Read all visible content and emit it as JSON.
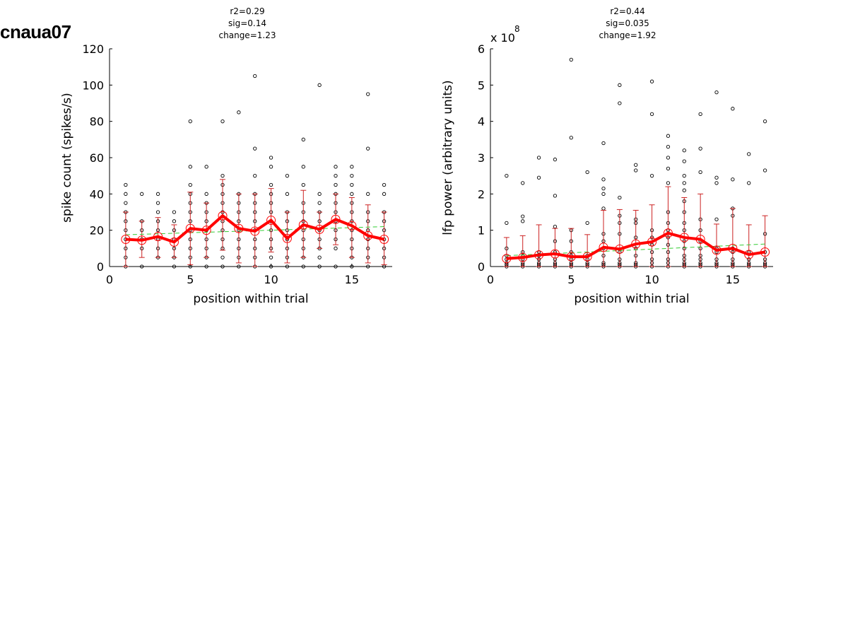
{
  "figure_label": "cnaua07",
  "colors": {
    "mean_line": "#ff0000",
    "errorbar": "#cc2222",
    "fit_line": "#33cc33",
    "points": "#000000"
  },
  "chart_data": [
    {
      "type": "scatter",
      "stats": [
        "r2=0.29",
        "sig=0.14",
        "change=1.23"
      ],
      "xlabel": "position within trial",
      "ylabel": "spike count (spikes/s)",
      "xlim": [
        0,
        17.5
      ],
      "ylim": [
        0,
        120
      ],
      "xticks": [
        0,
        5,
        10,
        15
      ],
      "yticks": [
        0,
        20,
        40,
        60,
        80,
        100,
        120
      ],
      "exponent_label": "",
      "x": [
        1,
        2,
        3,
        4,
        5,
        6,
        7,
        8,
        9,
        10,
        11,
        12,
        13,
        14,
        15,
        16,
        17
      ],
      "mean": [
        15,
        14.5,
        16.5,
        13.5,
        21,
        20,
        28,
        21,
        19.5,
        25.5,
        15.5,
        23,
        20.5,
        26,
        22.5,
        17,
        15
      ],
      "err_low": [
        0,
        5,
        5,
        5,
        1,
        5,
        9,
        2,
        0,
        8,
        2,
        5,
        10,
        12,
        5,
        2,
        1
      ],
      "err_high": [
        30,
        25,
        27,
        23,
        41,
        35,
        48,
        40,
        40,
        43,
        30,
        42,
        30,
        40,
        38,
        34,
        30
      ],
      "fit": [
        17.5,
        22
      ],
      "points": [
        [
          0,
          5,
          10,
          15,
          20,
          25,
          30,
          35,
          40,
          45
        ],
        [
          0,
          10,
          15,
          20,
          25,
          40
        ],
        [
          5,
          10,
          15,
          20,
          25,
          30,
          35,
          40
        ],
        [
          0,
          5,
          10,
          15,
          20,
          25,
          30
        ],
        [
          0,
          5,
          10,
          15,
          20,
          25,
          30,
          35,
          40,
          45,
          55,
          80
        ],
        [
          0,
          5,
          10,
          15,
          20,
          25,
          30,
          35,
          40,
          55
        ],
        [
          0,
          5,
          10,
          15,
          20,
          25,
          30,
          35,
          40,
          45,
          50,
          80
        ],
        [
          0,
          5,
          10,
          15,
          20,
          25,
          30,
          35,
          40,
          85
        ],
        [
          0,
          5,
          10,
          15,
          20,
          25,
          30,
          35,
          40,
          50,
          65,
          105
        ],
        [
          0,
          5,
          10,
          15,
          20,
          25,
          30,
          35,
          40,
          45,
          55,
          60
        ],
        [
          0,
          5,
          10,
          15,
          20,
          25,
          30,
          40,
          50
        ],
        [
          0,
          5,
          10,
          15,
          20,
          25,
          30,
          35,
          45,
          55,
          70
        ],
        [
          0,
          5,
          10,
          15,
          20,
          25,
          30,
          35,
          40,
          100
        ],
        [
          0,
          10,
          15,
          20,
          25,
          30,
          35,
          40,
          45,
          50,
          55
        ],
        [
          0,
          5,
          10,
          15,
          20,
          25,
          30,
          35,
          40,
          45,
          50,
          55
        ],
        [
          0,
          5,
          10,
          15,
          20,
          25,
          30,
          40,
          65,
          95
        ],
        [
          0,
          5,
          10,
          15,
          20,
          25,
          30,
          40,
          45
        ]
      ]
    },
    {
      "type": "scatter",
      "stats": [
        "r2=0.44",
        "sig=0.035",
        "change=1.92"
      ],
      "xlabel": "position within trial",
      "ylabel": "lfp power (arbitrary units)",
      "xlim": [
        0,
        17.5
      ],
      "ylim": [
        0,
        6
      ],
      "xticks": [
        0,
        5,
        10,
        15
      ],
      "yticks": [
        0,
        1,
        2,
        3,
        4,
        5,
        6
      ],
      "exponent_label": "x 10",
      "exponent_power": "8",
      "x": [
        1,
        2,
        3,
        4,
        5,
        6,
        7,
        8,
        9,
        10,
        11,
        12,
        13,
        14,
        15,
        16,
        17
      ],
      "mean": [
        0.22,
        0.25,
        0.32,
        0.35,
        0.27,
        0.27,
        0.53,
        0.48,
        0.62,
        0.68,
        0.92,
        0.8,
        0.75,
        0.45,
        0.5,
        0.33,
        0.4
      ],
      "err_low": [
        0,
        0,
        0,
        0,
        0,
        0,
        0,
        0,
        0,
        0,
        0,
        0,
        0,
        0,
        0,
        0,
        0
      ],
      "err_high": [
        0.8,
        0.85,
        1.15,
        1.05,
        1.05,
        0.88,
        1.55,
        1.57,
        1.55,
        1.7,
        2.2,
        1.9,
        2.0,
        1.17,
        1.6,
        1.15,
        1.4
      ],
      "fit": [
        0.3,
        0.62
      ],
      "points": [
        [
          0,
          0.05,
          0.1,
          0.2,
          0.3,
          0.5,
          1.2,
          2.5
        ],
        [
          0,
          0.05,
          0.1,
          0.2,
          0.3,
          0.4,
          1.25,
          1.38,
          2.3
        ],
        [
          0,
          0.05,
          0.1,
          0.2,
          0.3,
          0.4,
          2.45,
          3.0
        ],
        [
          0,
          0.05,
          0.1,
          0.2,
          0.4,
          0.7,
          1.1,
          1.95,
          2.95
        ],
        [
          0,
          0.05,
          0.1,
          0.2,
          0.3,
          0.4,
          0.7,
          1.0,
          3.55,
          5.7
        ],
        [
          0,
          0.05,
          0.1,
          0.2,
          0.3,
          1.2,
          2.6
        ],
        [
          0,
          0.05,
          0.1,
          0.3,
          0.5,
          0.7,
          0.9,
          1.6,
          2.0,
          2.15,
          2.4,
          3.4
        ],
        [
          0,
          0.05,
          0.1,
          0.2,
          0.4,
          0.9,
          1.2,
          1.4,
          1.9,
          4.5,
          5.0
        ],
        [
          0,
          0.05,
          0.1,
          0.3,
          0.5,
          0.8,
          1.2,
          1.3,
          2.65,
          2.8
        ],
        [
          0,
          0.1,
          0.2,
          0.4,
          0.6,
          0.8,
          1.0,
          2.5,
          4.2,
          5.1
        ],
        [
          0,
          0.1,
          0.2,
          0.4,
          0.6,
          0.8,
          1.0,
          1.2,
          1.5,
          2.3,
          2.7,
          3.0,
          3.3,
          3.6
        ],
        [
          0,
          0.05,
          0.1,
          0.2,
          0.3,
          0.5,
          0.7,
          1.0,
          1.2,
          1.5,
          1.8,
          2.1,
          2.3,
          2.5,
          2.9,
          3.2
        ],
        [
          0,
          0.05,
          0.1,
          0.2,
          0.3,
          0.5,
          0.7,
          1.0,
          1.3,
          2.6,
          3.25,
          4.2
        ],
        [
          0,
          0.05,
          0.1,
          0.2,
          0.4,
          0.5,
          1.3,
          2.3,
          2.45,
          4.8
        ],
        [
          0,
          0.05,
          0.1,
          0.2,
          0.4,
          0.5,
          1.4,
          1.6,
          2.4,
          4.35
        ],
        [
          0,
          0.05,
          0.1,
          0.2,
          0.4,
          2.3,
          3.1
        ],
        [
          0,
          0.05,
          0.1,
          0.2,
          0.4,
          0.9,
          2.65,
          4.0
        ]
      ]
    }
  ]
}
